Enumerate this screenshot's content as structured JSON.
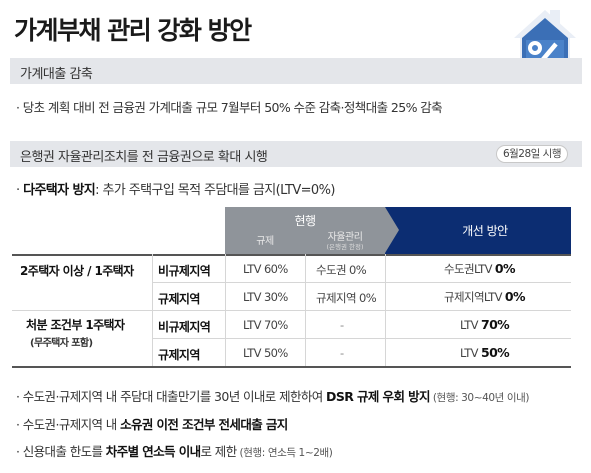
{
  "title": "가계부채 관리 강화 방안",
  "section1": {
    "heading": "가계대출 감축",
    "bullet": "· 당초 계획 대비 전 금융권 가계대출 규모 7월부터 50% 수준 감축·정책대출 25% 감축"
  },
  "section2": {
    "heading": "은행권 자율관리조치를 전 금융권으로 확대 시행",
    "date_badge": "6월28일 시행",
    "subpoint_prefix": "· ",
    "subpoint_bold": "다주택자 방지",
    "subpoint_rest": ": 추가 주택구입 목적 주담대를 금지(LTV=0%)"
  },
  "table": {
    "header_current": "현행",
    "header_regulation": "규제",
    "header_self": "자율관리",
    "header_self_note": "(은행권 한정)",
    "header_improve": "개선 방안",
    "rows": [
      {
        "group": "2주택자 이상 / 1주택자",
        "region": "비규제지역",
        "regulation": "LTV 60%",
        "self_prefix": "수도권 ",
        "self_value": "0%",
        "improve_prefix": "수도권LTV ",
        "improve_value": "0%"
      },
      {
        "group": "",
        "region": "규제지역",
        "regulation": "LTV 30%",
        "self_prefix": "규제지역 ",
        "self_value": "0%",
        "improve_prefix": "규제지역LTV ",
        "improve_value": "0%"
      },
      {
        "group": "처분 조건부 1주택자",
        "group_note": "(무주택자 포함)",
        "region": "비규제지역",
        "regulation": "LTV 70%",
        "self_prefix": "",
        "self_value": "-",
        "improve_prefix": "LTV ",
        "improve_value": "70%"
      },
      {
        "group": "",
        "region": "규제지역",
        "regulation": "LTV 50%",
        "self_prefix": "",
        "self_value": "-",
        "improve_prefix": "LTV ",
        "improve_value": "50%"
      }
    ]
  },
  "bullets": [
    {
      "pre": "· 수도권·규제지역 내 주담대 대출만기를 30년 이내로 제한하여 ",
      "bold": "DSR 규제 우회 방지",
      "post": "",
      "note": " (현행: 30~40년 이내)"
    },
    {
      "pre": "· 수도권·규제지역 내 ",
      "bold": "소유권 이전 조건부 전세대출 금지",
      "post": "",
      "note": ""
    },
    {
      "pre": "· 신용대출 한도를 ",
      "bold": "차주별 연소득 이내",
      "post": "로 제한",
      "note": " (현행: 연소득 1~2배)"
    }
  ],
  "logo": {
    "icon": "house-percent-icon",
    "color": "#3b6fb6"
  }
}
